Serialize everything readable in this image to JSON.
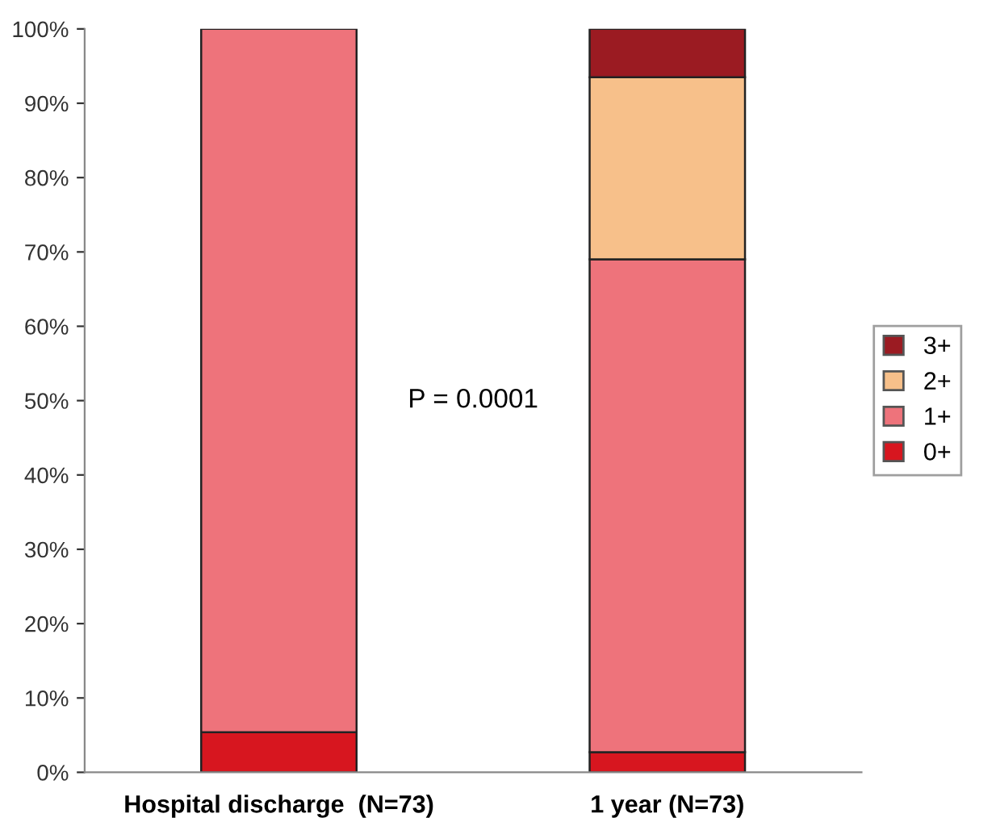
{
  "chart_data": {
    "type": "bar",
    "stacked": true,
    "categories": [
      "Hospital discharge  (N=73)",
      "1 year (N=73)"
    ],
    "series": [
      {
        "name": "0+",
        "color": "#d7161f",
        "values": [
          5.4,
          2.7
        ]
      },
      {
        "name": "1+",
        "color": "#ee737b",
        "values": [
          94.6,
          66.3
        ]
      },
      {
        "name": "2+",
        "color": "#f7c08a",
        "values": [
          null,
          24.5
        ]
      },
      {
        "name": "3+",
        "color": "#9b1b22",
        "values": [
          null,
          6.5
        ]
      }
    ],
    "ylim": [
      0,
      100
    ],
    "yticks": [
      {
        "value": 0,
        "label": "0%"
      },
      {
        "value": 10,
        "label": "10%"
      },
      {
        "value": 20,
        "label": "20%"
      },
      {
        "value": 30,
        "label": "30%"
      },
      {
        "value": 40,
        "label": "40%"
      },
      {
        "value": 50,
        "label": "50%"
      },
      {
        "value": 60,
        "label": "60%"
      },
      {
        "value": 70,
        "label": "70%"
      },
      {
        "value": 80,
        "label": "80%"
      },
      {
        "value": 90,
        "label": "90%"
      },
      {
        "value": 100,
        "label": "100%"
      }
    ],
    "annotations": [
      "P = 0.0001"
    ],
    "legend": "right",
    "grid": false
  }
}
